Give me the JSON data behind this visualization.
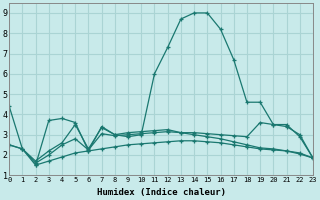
{
  "background_color": "#c8eaea",
  "grid_color": "#aad4d4",
  "line_color": "#1a7870",
  "xlabel": "Humidex (Indice chaleur)",
  "xlim": [
    0,
    23
  ],
  "ylim": [
    1,
    9.5
  ],
  "xticks": [
    0,
    1,
    2,
    3,
    4,
    5,
    6,
    7,
    8,
    9,
    10,
    11,
    12,
    13,
    14,
    15,
    16,
    17,
    18,
    19,
    20,
    21,
    22,
    23
  ],
  "yticks": [
    1,
    2,
    3,
    4,
    5,
    6,
    7,
    8,
    9
  ],
  "line1_x": [
    0,
    1,
    2,
    3,
    4,
    5,
    6,
    7,
    8,
    9,
    10,
    11,
    12,
    13,
    14,
    15,
    16,
    17,
    18,
    19,
    20,
    21,
    22,
    23
  ],
  "line1_y": [
    4.4,
    2.3,
    1.5,
    3.7,
    3.8,
    3.6,
    2.2,
    3.4,
    3.0,
    2.9,
    3.0,
    6.0,
    7.3,
    8.7,
    9.0,
    9.0,
    8.2,
    6.7,
    4.6,
    4.6,
    3.5,
    3.5,
    2.9,
    1.85
  ],
  "line2_x": [
    0,
    1,
    2,
    3,
    4,
    5,
    6,
    7,
    8,
    9,
    10,
    11,
    12,
    13,
    14,
    15,
    16,
    17,
    18,
    19,
    20,
    21,
    22,
    23
  ],
  "line2_y": [
    2.5,
    2.3,
    1.7,
    2.2,
    2.6,
    3.5,
    2.3,
    3.35,
    3.0,
    3.1,
    3.15,
    3.2,
    3.25,
    3.1,
    3.1,
    3.05,
    3.0,
    2.95,
    2.9,
    3.6,
    3.5,
    3.4,
    3.0,
    1.85
  ],
  "line3_x": [
    0,
    1,
    2,
    3,
    4,
    5,
    6,
    7,
    8,
    9,
    10,
    11,
    12,
    13,
    14,
    15,
    16,
    17,
    18,
    19,
    20,
    21,
    22,
    23
  ],
  "line3_y": [
    2.5,
    2.3,
    1.6,
    2.0,
    2.5,
    2.8,
    2.25,
    3.05,
    2.95,
    3.0,
    3.05,
    3.1,
    3.15,
    3.1,
    3.0,
    2.9,
    2.8,
    2.65,
    2.5,
    2.35,
    2.3,
    2.2,
    2.05,
    1.85
  ],
  "line4_x": [
    2,
    3,
    4,
    5,
    6,
    7,
    8,
    9,
    10,
    11,
    12,
    13,
    14,
    15,
    16,
    17,
    18,
    19,
    20,
    21,
    22,
    23
  ],
  "line4_y": [
    1.5,
    1.7,
    1.9,
    2.1,
    2.2,
    2.3,
    2.4,
    2.5,
    2.55,
    2.6,
    2.65,
    2.7,
    2.7,
    2.65,
    2.6,
    2.5,
    2.4,
    2.3,
    2.25,
    2.2,
    2.1,
    1.85
  ]
}
